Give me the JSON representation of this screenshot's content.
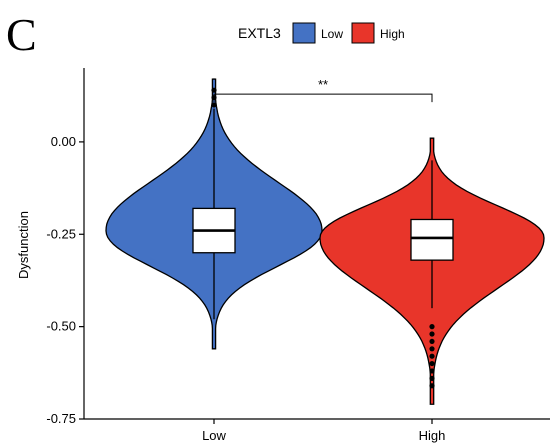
{
  "panel_label": "C",
  "chart_data": {
    "type": "violin",
    "title": "",
    "xlabel": "",
    "ylabel": "Dysfunction",
    "categories": [
      "Low",
      "High"
    ],
    "ylim": [
      -0.75,
      0.2
    ],
    "yticks": [
      0.0,
      -0.25,
      -0.5,
      -0.75
    ],
    "ytick_labels": [
      "0.00",
      "-0.25",
      "-0.50",
      "-0.75"
    ],
    "legend": {
      "title": "EXTL3",
      "placement": "top",
      "entries": [
        "Low",
        "High"
      ]
    },
    "series": [
      {
        "category": "Low",
        "color": "#4472C4",
        "box": {
          "whisker_low": -0.48,
          "q1": -0.3,
          "median": -0.24,
          "q3": -0.18,
          "whisker_high": 0.09
        },
        "range": [
          -0.56,
          0.17
        ],
        "outliers": [
          0.1,
          0.12,
          0.14
        ]
      },
      {
        "category": "High",
        "color": "#E8352A",
        "box": {
          "whisker_low": -0.45,
          "q1": -0.32,
          "median": -0.26,
          "q3": -0.21,
          "whisker_high": -0.05
        },
        "range": [
          -0.71,
          0.01
        ],
        "outliers": [
          -0.5,
          -0.52,
          -0.54,
          -0.56,
          -0.58,
          -0.6,
          -0.62,
          -0.64,
          -0.66
        ]
      }
    ],
    "significance": {
      "between": [
        "Low",
        "High"
      ],
      "label": "**"
    }
  }
}
